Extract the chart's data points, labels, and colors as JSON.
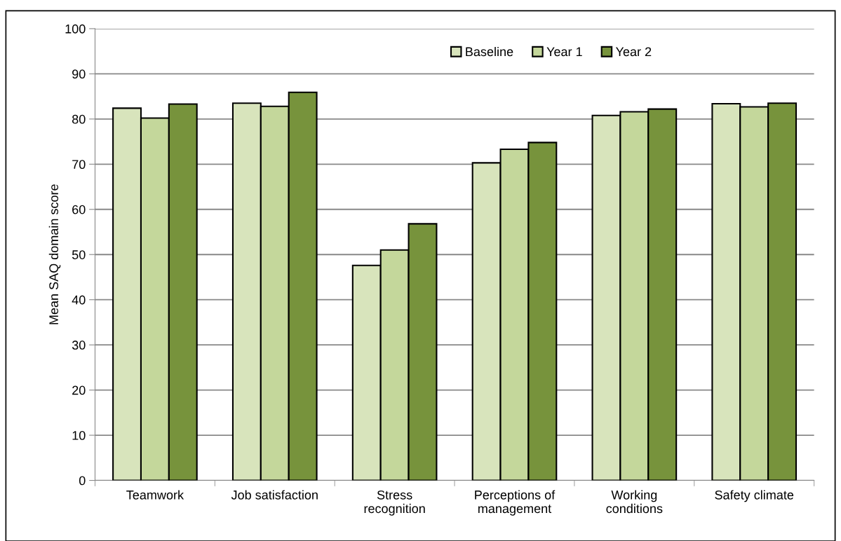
{
  "chart_data": {
    "type": "bar",
    "ylabel": "Mean SAQ domain score",
    "categories": [
      "Teamwork",
      "Job satisfaction",
      "Stress\nrecognition",
      "Perceptions of\nmanagement",
      "Working\nconditions",
      "Safety climate"
    ],
    "series": [
      {
        "name": "Baseline",
        "color": "#d8e4bc",
        "values": [
          82.4,
          83.5,
          47.6,
          70.3,
          80.8,
          83.4
        ]
      },
      {
        "name": "Year 1",
        "color": "#c4d79b",
        "values": [
          80.2,
          82.8,
          51.0,
          73.3,
          81.6,
          82.7
        ]
      },
      {
        "name": "Year 2",
        "color": "#77933c",
        "values": [
          83.3,
          85.9,
          56.8,
          74.8,
          82.2,
          83.5
        ]
      }
    ],
    "ylim": [
      0,
      100
    ],
    "yticks": [
      0,
      10,
      20,
      30,
      40,
      50,
      60,
      70,
      80,
      90,
      100
    ],
    "grid": "y",
    "legend": "top right"
  }
}
